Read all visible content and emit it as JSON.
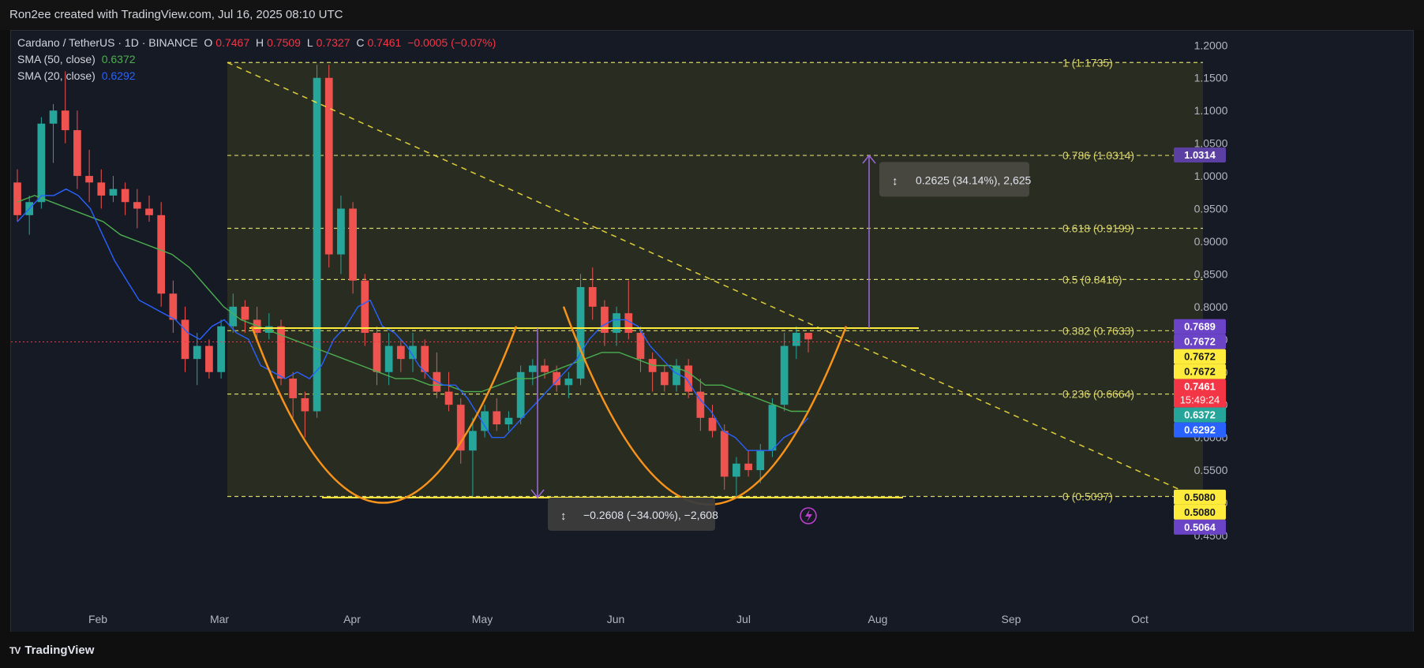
{
  "header": {
    "caption": "Ron2ee created with TradingView.com, Jul 16, 2025 08:10 UTC"
  },
  "legend": {
    "symbol": "Cardano / TetherUS · 1D · BINANCE",
    "o_label": "O",
    "o": "0.7467",
    "h_label": "H",
    "h": "0.7509",
    "l_label": "L",
    "l": "0.7327",
    "c_label": "C",
    "c": "0.7461",
    "change": "−0.0005 (−0.07%)",
    "sma50_label": "SMA (50, close)",
    "sma50": "0.6372",
    "sma20_label": "SMA (20, close)",
    "sma20": "0.6292"
  },
  "footer": {
    "brand": "TradingView"
  },
  "colors": {
    "up": "#26a69a",
    "down": "#ef5350",
    "sma50": "#4caf50",
    "sma20": "#2962ff",
    "fib": "#d9d56a",
    "neckline": "#ffeb3b",
    "cup": "#f7931a",
    "measure": "#9c6ade"
  },
  "chart_data": {
    "type": "candlestick",
    "y_range": [
      0.45,
      1.21
    ],
    "y_ticks": [
      "1.2000",
      "1.1500",
      "1.1000",
      "1.0500",
      "1.0000",
      "0.9500",
      "0.9000",
      "0.8500",
      "0.8000",
      "0.7500",
      "0.7000",
      "0.6500",
      "0.6000",
      "0.5500",
      "0.5000",
      "0.4500"
    ],
    "x_labels": [
      "Feb",
      "Mar",
      "Apr",
      "May",
      "Jun",
      "Jul",
      "Aug",
      "Sep",
      "Oct"
    ],
    "fib_levels": [
      {
        "ratio": "1",
        "price": 1.1735,
        "label": "1 (1.1735)"
      },
      {
        "ratio": "0.786",
        "price": 1.0314,
        "label": "0.786 (1.0314)"
      },
      {
        "ratio": "0.618",
        "price": 0.9199,
        "label": "0.618 (0.9199)"
      },
      {
        "ratio": "0.5",
        "price": 0.8416,
        "label": "0.5 (0.8416)"
      },
      {
        "ratio": "0.382",
        "price": 0.7633,
        "label": "0.382 (0.7633)"
      },
      {
        "ratio": "0.236",
        "price": 0.6664,
        "label": "0.236 (0.6664)"
      },
      {
        "ratio": "0",
        "price": 0.5097,
        "label": "0 (0.5097)"
      }
    ],
    "neckline": 0.7672,
    "base_line": 0.508,
    "measure_up": "0.2625 (34.14%), 2,625",
    "measure_down": "−0.2608 (−34.00%), −2,608",
    "price_tags": [
      {
        "text": "1.0314",
        "price": 1.0314,
        "color": "#5b3fa3"
      },
      {
        "text": "0.7689",
        "price": 0.7689,
        "color": "#6a43c7"
      },
      {
        "text": "0.7672",
        "price": 0.7672,
        "color": "#6a43c7"
      },
      {
        "text": "0.7672",
        "price": 0.7672,
        "color": "#ffeb3b"
      },
      {
        "text": "0.7672",
        "price": 0.7672,
        "color": "#ffeb3b"
      },
      {
        "text": "0.7461",
        "price": 0.7461,
        "color": "#f23645"
      },
      {
        "text": "0.6372",
        "price": 0.6372,
        "color": "#26a69a"
      },
      {
        "text": "0.6292",
        "price": 0.6292,
        "color": "#2962ff"
      },
      {
        "text": "0.5080",
        "price": 0.508,
        "color": "#ffeb3b"
      },
      {
        "text": "0.5080",
        "price": 0.508,
        "color": "#ffeb3b"
      },
      {
        "text": "0.5064",
        "price": 0.5064,
        "color": "#6a43c7"
      }
    ],
    "countdown": "15:49:24",
    "sma20_series": [
      0.93,
      0.95,
      0.97,
      0.97,
      0.98,
      0.97,
      0.95,
      0.91,
      0.87,
      0.84,
      0.81,
      0.8,
      0.79,
      0.78,
      0.76,
      0.75,
      0.77,
      0.78,
      0.76,
      0.75,
      0.71,
      0.7,
      0.69,
      0.7,
      0.69,
      0.71,
      0.75,
      0.77,
      0.8,
      0.81,
      0.77,
      0.76,
      0.74,
      0.71,
      0.69,
      0.68,
      0.68,
      0.66,
      0.63,
      0.6,
      0.6,
      0.62,
      0.64,
      0.66,
      0.68,
      0.7,
      0.72,
      0.75,
      0.77,
      0.78,
      0.78,
      0.77,
      0.74,
      0.72,
      0.7,
      0.69,
      0.66,
      0.64,
      0.61,
      0.6,
      0.58,
      0.58,
      0.58,
      0.6,
      0.61,
      0.63
    ],
    "sma50_series": [
      0.96,
      0.97,
      0.96,
      0.95,
      0.94,
      0.93,
      0.91,
      0.9,
      0.89,
      0.88,
      0.86,
      0.83,
      0.8,
      0.78,
      0.77,
      0.76,
      0.75,
      0.74,
      0.73,
      0.72,
      0.71,
      0.7,
      0.69,
      0.69,
      0.68,
      0.68,
      0.67,
      0.67,
      0.68,
      0.69,
      0.69,
      0.7,
      0.71,
      0.72,
      0.73,
      0.73,
      0.72,
      0.71,
      0.71,
      0.7,
      0.68,
      0.68,
      0.67,
      0.66,
      0.65,
      0.64,
      0.64
    ],
    "candles": [
      [
        0.99,
        1.01,
        0.93,
        0.94
      ],
      [
        0.94,
        0.97,
        0.91,
        0.96
      ],
      [
        0.96,
        1.09,
        0.95,
        1.08
      ],
      [
        1.08,
        1.11,
        1.02,
        1.1
      ],
      [
        1.1,
        1.16,
        1.05,
        1.07
      ],
      [
        1.07,
        1.1,
        0.98,
        1.0
      ],
      [
        1.0,
        1.04,
        0.96,
        0.99
      ],
      [
        0.99,
        1.01,
        0.95,
        0.97
      ],
      [
        0.97,
        1.0,
        0.96,
        0.98
      ],
      [
        0.98,
        0.99,
        0.94,
        0.96
      ],
      [
        0.96,
        0.98,
        0.92,
        0.95
      ],
      [
        0.95,
        0.97,
        0.93,
        0.94
      ],
      [
        0.94,
        0.96,
        0.8,
        0.82
      ],
      [
        0.82,
        0.84,
        0.76,
        0.78
      ],
      [
        0.78,
        0.8,
        0.7,
        0.72
      ],
      [
        0.72,
        0.76,
        0.68,
        0.74
      ],
      [
        0.74,
        0.75,
        0.69,
        0.7
      ],
      [
        0.7,
        0.78,
        0.69,
        0.77
      ],
      [
        0.77,
        0.82,
        0.76,
        0.8
      ],
      [
        0.8,
        0.81,
        0.76,
        0.78
      ],
      [
        0.78,
        0.8,
        0.75,
        0.76
      ],
      [
        0.76,
        0.79,
        0.75,
        0.77
      ],
      [
        0.77,
        0.78,
        0.68,
        0.69
      ],
      [
        0.69,
        0.7,
        0.63,
        0.66
      ],
      [
        0.66,
        0.67,
        0.6,
        0.64
      ],
      [
        0.64,
        1.17,
        0.63,
        1.15
      ],
      [
        1.15,
        1.17,
        0.86,
        0.88
      ],
      [
        0.88,
        0.97,
        0.85,
        0.95
      ],
      [
        0.95,
        0.96,
        0.82,
        0.84
      ],
      [
        0.84,
        0.85,
        0.74,
        0.76
      ],
      [
        0.76,
        0.77,
        0.68,
        0.7
      ],
      [
        0.7,
        0.76,
        0.68,
        0.74
      ],
      [
        0.74,
        0.75,
        0.7,
        0.72
      ],
      [
        0.72,
        0.76,
        0.7,
        0.74
      ],
      [
        0.74,
        0.75,
        0.69,
        0.7
      ],
      [
        0.7,
        0.73,
        0.66,
        0.67
      ],
      [
        0.67,
        0.7,
        0.64,
        0.65
      ],
      [
        0.65,
        0.66,
        0.56,
        0.58
      ],
      [
        0.58,
        0.63,
        0.51,
        0.61
      ],
      [
        0.61,
        0.65,
        0.6,
        0.64
      ],
      [
        0.64,
        0.66,
        0.61,
        0.62
      ],
      [
        0.62,
        0.64,
        0.61,
        0.63
      ],
      [
        0.63,
        0.71,
        0.62,
        0.7
      ],
      [
        0.7,
        0.72,
        0.68,
        0.71
      ],
      [
        0.71,
        0.72,
        0.69,
        0.7
      ],
      [
        0.7,
        0.71,
        0.67,
        0.68
      ],
      [
        0.68,
        0.7,
        0.66,
        0.69
      ],
      [
        0.69,
        0.85,
        0.68,
        0.83
      ],
      [
        0.83,
        0.86,
        0.78,
        0.8
      ],
      [
        0.8,
        0.81,
        0.74,
        0.76
      ],
      [
        0.76,
        0.8,
        0.74,
        0.79
      ],
      [
        0.79,
        0.84,
        0.75,
        0.76
      ],
      [
        0.76,
        0.77,
        0.7,
        0.72
      ],
      [
        0.72,
        0.73,
        0.67,
        0.7
      ],
      [
        0.7,
        0.71,
        0.67,
        0.68
      ],
      [
        0.68,
        0.72,
        0.67,
        0.71
      ],
      [
        0.71,
        0.72,
        0.66,
        0.67
      ],
      [
        0.67,
        0.69,
        0.61,
        0.63
      ],
      [
        0.63,
        0.65,
        0.6,
        0.61
      ],
      [
        0.61,
        0.62,
        0.52,
        0.54
      ],
      [
        0.54,
        0.57,
        0.51,
        0.56
      ],
      [
        0.56,
        0.58,
        0.54,
        0.55
      ],
      [
        0.55,
        0.59,
        0.53,
        0.58
      ],
      [
        0.58,
        0.66,
        0.57,
        0.65
      ],
      [
        0.65,
        0.76,
        0.64,
        0.74
      ],
      [
        0.74,
        0.77,
        0.72,
        0.76
      ],
      [
        0.76,
        0.76,
        0.73,
        0.75
      ]
    ]
  }
}
